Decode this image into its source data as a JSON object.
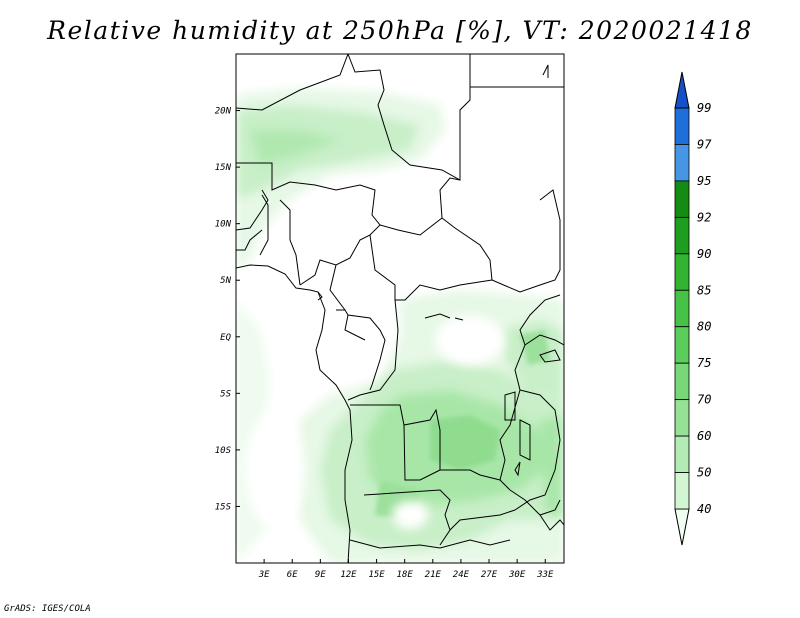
{
  "title": "Relative humidity at 250hPa [%], VT: 2020021418",
  "credit": "GrADS: IGES/COLA",
  "map": {
    "lon_range": [
      0,
      35
    ],
    "lat_range": [
      -20,
      25
    ],
    "lat_labels": [
      {
        "lat": 20,
        "text": "20N"
      },
      {
        "lat": 15,
        "text": "15N"
      },
      {
        "lat": 10,
        "text": "10N"
      },
      {
        "lat": 5,
        "text": "5N"
      },
      {
        "lat": 0,
        "text": "EQ"
      },
      {
        "lat": -5,
        "text": "5S"
      },
      {
        "lat": -10,
        "text": "10S"
      },
      {
        "lat": -15,
        "text": "15S"
      }
    ],
    "lon_labels": [
      {
        "lon": 3,
        "text": "3E"
      },
      {
        "lon": 6,
        "text": "6E"
      },
      {
        "lon": 9,
        "text": "9E"
      },
      {
        "lon": 12,
        "text": "12E"
      },
      {
        "lon": 15,
        "text": "15E"
      },
      {
        "lon": 18,
        "text": "18E"
      },
      {
        "lon": 21,
        "text": "21E"
      },
      {
        "lon": 24,
        "text": "24E"
      },
      {
        "lon": 27,
        "text": "27E"
      },
      {
        "lon": 30,
        "text": "30E"
      },
      {
        "lon": 33,
        "text": "33E"
      }
    ]
  },
  "colorbar": {
    "labels": [
      "99",
      "97",
      "95",
      "92",
      "90",
      "85",
      "80",
      "75",
      "70",
      "60",
      "50",
      "40"
    ],
    "colors": [
      "#f0fff0",
      "#d2f5d2",
      "#b4ebb4",
      "#96e196",
      "#78d778",
      "#5acd5a",
      "#46c346",
      "#32b432",
      "#1e9e1e",
      "#148c14",
      "#4696e6",
      "#1e6edc",
      "#1450c8"
    ]
  }
}
